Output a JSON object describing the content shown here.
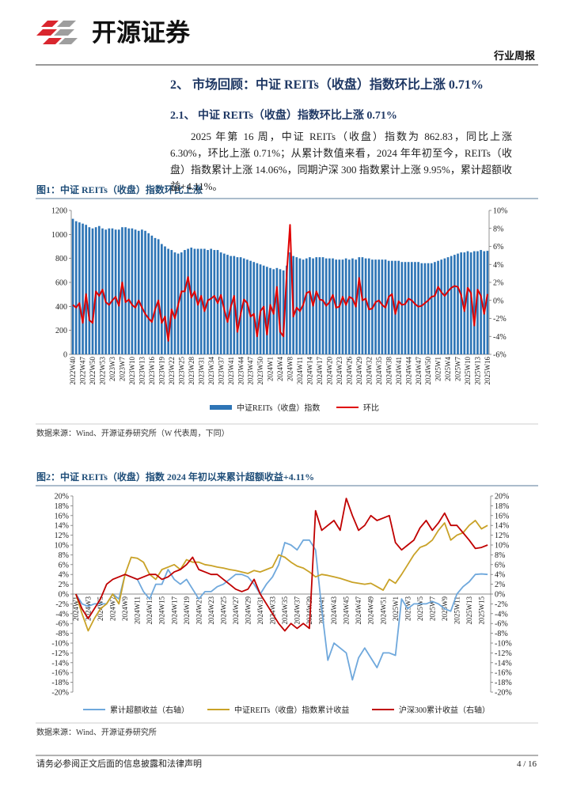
{
  "header": {
    "logo": "开源证券",
    "report_type": "行业周报"
  },
  "section_heading": "2、 市场回顾：中证 REITs（收盘）指数环比上涨 0.71%",
  "subsection_heading": "2.1、 中证 REITs（收盘）指数环比上涨 0.71%",
  "paragraph": "2025 年第 16 周，中证 REITs（收盘）指数为 862.83，同比上涨 6.30%，环比上涨 0.71%；从累计数值来看，2024 年年初至今，REITs（收盘）指数累计上涨 14.06%，同期沪深 300 指数累计上涨 9.95%，累计超额收益+4.11%。",
  "chart_data": [
    {
      "type": "bar_line",
      "title": "图1：中证 REITs（收盘）指数环比上涨",
      "source": "数据来源：Wind、开源证券研究所（W 代表周，下同）",
      "legend": "bottom",
      "categories": [
        "2022W40",
        null,
        null,
        "2022W47",
        null,
        null,
        "2022W50",
        null,
        null,
        "2022W53",
        null,
        null,
        "2023W3",
        null,
        null,
        "2023W7",
        null,
        null,
        "2023W10",
        null,
        null,
        "2023W13",
        null,
        null,
        "2023W16",
        null,
        null,
        "2023W19",
        null,
        null,
        "2023W22",
        null,
        null,
        "2023W25",
        null,
        null,
        "2023W28",
        null,
        null,
        "2023W31",
        null,
        null,
        "2023W34",
        null,
        null,
        "2023W37",
        null,
        null,
        "2023W41",
        null,
        null,
        "2023W44",
        null,
        null,
        "2023W47",
        null,
        null,
        "2023W50",
        null,
        null,
        "2024W1",
        null,
        null,
        "2024W4",
        null,
        null,
        "2024W8",
        null,
        null,
        "2024W11",
        null,
        null,
        "2024W14",
        null,
        null,
        "2024W17",
        null,
        null,
        "2024W20",
        null,
        null,
        "2024W23",
        null,
        null,
        "2024W26",
        null,
        null,
        "2024W29",
        null,
        null,
        "2024W32",
        null,
        null,
        "2024W35",
        null,
        null,
        "2024W38",
        null,
        null,
        "2024W41",
        null,
        null,
        "2024W44",
        null,
        null,
        "2024W47",
        null,
        null,
        "2024W50",
        null,
        null,
        "2025W1",
        null,
        null,
        "2025W4",
        null,
        null,
        "2025W7",
        null,
        null,
        "2025W10",
        null,
        null,
        "2025W13",
        null,
        null,
        "2025W16"
      ],
      "ylim": [
        0,
        1200
      ],
      "yticks": [
        0,
        200,
        400,
        600,
        800,
        1000,
        1200
      ],
      "y2lim": [
        -6,
        10
      ],
      "y2ticks": [
        {
          "value": -6,
          "label": "-6%"
        },
        {
          "value": -4,
          "label": "-4%"
        },
        {
          "value": -2,
          "label": "-2%"
        },
        {
          "value": 0,
          "label": "0%"
        },
        {
          "value": 2,
          "label": "2%"
        },
        {
          "value": 4,
          "label": "4%"
        },
        {
          "value": 6,
          "label": "6%"
        },
        {
          "value": 8,
          "label": "8%"
        },
        {
          "value": 10,
          "label": "10%"
        }
      ],
      "series": [
        {
          "name": "中证REITs（收盘）指数",
          "type": "bar",
          "color": "#2e75b6",
          "values": [
            1130,
            1110,
            1100,
            1090,
            1080,
            1060,
            1050,
            1060,
            1070,
            1050,
            1040,
            1050,
            1050,
            1040,
            1040,
            1060,
            1060,
            1050,
            1050,
            1040,
            1030,
            1040,
            1030,
            1010,
            990,
            970,
            960,
            920,
            900,
            880,
            870,
            850,
            840,
            850,
            870,
            880,
            890,
            880,
            880,
            880,
            880,
            870,
            880,
            870,
            870,
            850,
            840,
            830,
            820,
            820,
            810,
            810,
            800,
            790,
            780,
            770,
            760,
            750,
            740,
            730,
            720,
            710,
            720,
            710,
            700,
            740,
            850,
            820,
            810,
            800,
            790,
            800,
            810,
            800,
            810,
            810,
            810,
            800,
            800,
            800,
            790,
            790,
            790,
            800,
            790,
            800,
            790,
            810,
            810,
            800,
            800,
            790,
            790,
            790,
            790,
            790,
            780,
            780,
            780,
            780,
            770,
            770,
            770,
            770,
            770,
            770,
            760,
            760,
            760,
            760,
            770,
            780,
            790,
            800,
            810,
            820,
            830,
            840,
            850,
            850,
            860,
            850,
            860,
            860,
            870,
            860,
            863
          ]
        },
        {
          "name": "环比",
          "type": "line",
          "axis": "y2",
          "color": "#e00000",
          "values": [
            -0.5,
            -0.8,
            -0.3,
            -2.5,
            0.7,
            -2.2,
            -2.5,
            1,
            0.5,
            1.2,
            -0.2,
            -0.5,
            0,
            0.4,
            -0.6,
            2,
            -0.2,
            0.1,
            -0.5,
            -0.8,
            0,
            -0.8,
            -1.5,
            -2,
            -2.4,
            -1,
            0,
            -2.5,
            -1.8,
            -4.5,
            -1,
            -2,
            -0.5,
            1,
            1,
            2.6,
            0.3,
            1,
            -0.5,
            0.5,
            -1.2,
            0,
            0.2,
            0.5,
            -0.3,
            0.6,
            -1,
            -2.4,
            -0.7,
            0.5,
            -3.5,
            -1.5,
            0.1,
            -0.3,
            -1.8,
            -1.5,
            -4,
            -1.2,
            -0.7,
            -3.8,
            -0.5,
            -1.5,
            1.5,
            -3.5,
            -4,
            3,
            8.4,
            -1.8,
            -0.8,
            -1.2,
            -0.5,
            0.8,
            1,
            -0.6,
            1,
            0.1,
            0,
            -0.6,
            -0.2,
            0.6,
            -0.8,
            -0.7,
            0.4,
            -0.5,
            0.4,
            0.2,
            -0.7,
            2.5,
            0,
            0.2,
            -1,
            -0.9,
            -0.2,
            0,
            -0.5,
            -0.8,
            0.4,
            0.7,
            -1.5,
            -0.1,
            -0.5,
            -0.4,
            0.2,
            0,
            -0.4,
            -0.7,
            -0.6,
            -0.3,
            0,
            0.4,
            0.5,
            1.5,
            0.9,
            0.5,
            1,
            1.4,
            1.6,
            1.5,
            0.6,
            -1.2,
            1.4,
            0.8,
            -2.8,
            1.2,
            0.5,
            -1.5,
            0.71
          ]
        }
      ]
    },
    {
      "type": "line",
      "title": "图2：中证 REITs（收盘）指数 2024 年初以来累计超额收益+4.11%",
      "source": "数据来源：Wind、开源证券研究所",
      "legend": "bottom",
      "categories": [
        "2024W1",
        null,
        "2024W3",
        null,
        "2024W5",
        null,
        "2024W7",
        null,
        "2024W9",
        null,
        "2024W11",
        null,
        "2024W13",
        null,
        "2024W15",
        null,
        "2024W17",
        null,
        "2024W19",
        null,
        "2024W21",
        null,
        "2024W23",
        null,
        "2024W25",
        null,
        "2024W27",
        null,
        "2024W29",
        null,
        "2024W31",
        null,
        "2024W33",
        null,
        "2024W35",
        null,
        "2024W37",
        null,
        "2024W39",
        null,
        "2024W41",
        null,
        "2024W43",
        null,
        "2024W45",
        null,
        "2024W47",
        null,
        "2024W49",
        null,
        "2024W51",
        null,
        "2025W1",
        null,
        "2025W3",
        null,
        "2025W5",
        null,
        "2025W7",
        null,
        "2025W9",
        null,
        "2025W11",
        null,
        "2025W13",
        null,
        "2025W15",
        null
      ],
      "ylim": [
        -20,
        20
      ],
      "yticks": [
        {
          "value": -20,
          "label": "-20%"
        },
        {
          "value": -18,
          "label": "-18%"
        },
        {
          "value": -16,
          "label": "-16%"
        },
        {
          "value": -14,
          "label": "-14%"
        },
        {
          "value": -12,
          "label": "-12%"
        },
        {
          "value": -10,
          "label": "-10%"
        },
        {
          "value": -8,
          "label": "-8%"
        },
        {
          "value": -6,
          "label": "-6%"
        },
        {
          "value": -4,
          "label": "-4%"
        },
        {
          "value": -2,
          "label": "-2%"
        },
        {
          "value": 0,
          "label": "0%"
        },
        {
          "value": 2,
          "label": "2%"
        },
        {
          "value": 4,
          "label": "4%"
        },
        {
          "value": 6,
          "label": "6%"
        },
        {
          "value": 8,
          "label": "8%"
        },
        {
          "value": 10,
          "label": "10%"
        },
        {
          "value": 12,
          "label": "12%"
        },
        {
          "value": 14,
          "label": "14%"
        },
        {
          "value": 16,
          "label": "16%"
        },
        {
          "value": 18,
          "label": "18%"
        },
        {
          "value": 20,
          "label": "20%"
        }
      ],
      "y2lim": [
        -20,
        20
      ],
      "y2ticks": [
        {
          "value": -20,
          "label": "-20%"
        },
        {
          "value": -18,
          "label": "-18%"
        },
        {
          "value": -16,
          "label": "-16%"
        },
        {
          "value": -14,
          "label": "-14%"
        },
        {
          "value": -12,
          "label": "-12%"
        },
        {
          "value": -10,
          "label": "-10%"
        },
        {
          "value": -8,
          "label": "-8%"
        },
        {
          "value": -6,
          "label": "-6%"
        },
        {
          "value": -4,
          "label": "-4%"
        },
        {
          "value": -2,
          "label": "-2%"
        },
        {
          "value": 0,
          "label": "0%"
        },
        {
          "value": 2,
          "label": "2%"
        },
        {
          "value": 4,
          "label": "4%"
        },
        {
          "value": 6,
          "label": "6%"
        },
        {
          "value": 8,
          "label": "8%"
        },
        {
          "value": 10,
          "label": "10%"
        },
        {
          "value": 12,
          "label": "12%"
        },
        {
          "value": 14,
          "label": "14%"
        },
        {
          "value": 16,
          "label": "16%"
        },
        {
          "value": 18,
          "label": "18%"
        },
        {
          "value": 20,
          "label": "20%"
        }
      ],
      "series": [
        {
          "name": "累计超额收益（右轴）",
          "axis": "y2",
          "color": "#6fa8dc",
          "values": [
            0,
            -2,
            -2.5,
            -2,
            -2,
            -2,
            0,
            -1,
            4,
            3.5,
            3,
            0.5,
            -1,
            2,
            2,
            5,
            3,
            2,
            3,
            1,
            -1,
            0.5,
            0.5,
            1.5,
            2,
            3,
            4,
            4,
            3.5,
            2,
            0,
            2,
            3.5,
            6,
            10.5,
            10,
            9,
            11,
            11,
            9,
            -3,
            -13.5,
            -10,
            -11,
            -12,
            -17.5,
            -13,
            -11,
            -13,
            -15,
            -12,
            -12,
            -12.5,
            -1,
            -3,
            -2,
            -2,
            -2,
            -1.5,
            -2,
            -3,
            -3.5,
            0,
            1.5,
            2.5,
            4,
            4.1,
            4
          ]
        },
        {
          "name": "中证REITs（收盘）指数累计收益",
          "color": "#c9a227",
          "values": [
            0,
            -4,
            -7.5,
            -5,
            -3,
            -2,
            0,
            -2,
            4,
            7.5,
            7.3,
            6.5,
            4,
            3,
            5,
            5.5,
            6,
            5,
            7,
            6.5,
            6.5,
            6,
            5.8,
            5.5,
            5.3,
            5,
            4.8,
            4.5,
            4.2,
            4.8,
            4.5,
            5,
            5.5,
            8,
            7.5,
            6.5,
            5.7,
            5.3,
            4.5,
            3.5,
            4,
            3.8,
            3.5,
            3.2,
            2.8,
            2.4,
            2.2,
            2,
            2.2,
            1.5,
            0.8,
            3,
            2.2,
            4,
            6,
            8,
            9.5,
            10,
            11,
            13,
            14.5,
            11,
            12,
            12.5,
            14,
            15,
            13.3,
            14
          ]
        },
        {
          "name": "沪深300累计收益（右轴）",
          "axis": "y2",
          "color": "#c00000",
          "values": [
            0,
            -3,
            -5,
            -3,
            -1,
            2,
            3,
            3.5,
            4,
            3.5,
            3,
            3.5,
            4,
            4,
            3,
            3.5,
            4.5,
            5,
            6,
            7.5,
            5,
            4.5,
            4,
            4,
            3,
            2,
            1,
            0.5,
            1,
            3,
            0,
            -2,
            -4,
            -6,
            -7.5,
            -6,
            -7,
            -6,
            -7,
            17,
            13,
            14,
            15,
            13,
            19.5,
            16,
            13,
            14,
            16,
            15,
            15.5,
            16,
            10.5,
            9,
            10,
            11,
            13.5,
            15,
            13,
            14.5,
            16.5,
            14,
            14,
            12.5,
            11,
            9.3,
            9.5,
            10
          ]
        }
      ]
    }
  ],
  "footer": {
    "disclaimer": "请务必参阅正文后面的信息披露和法律声明",
    "page": "4 / 16"
  }
}
